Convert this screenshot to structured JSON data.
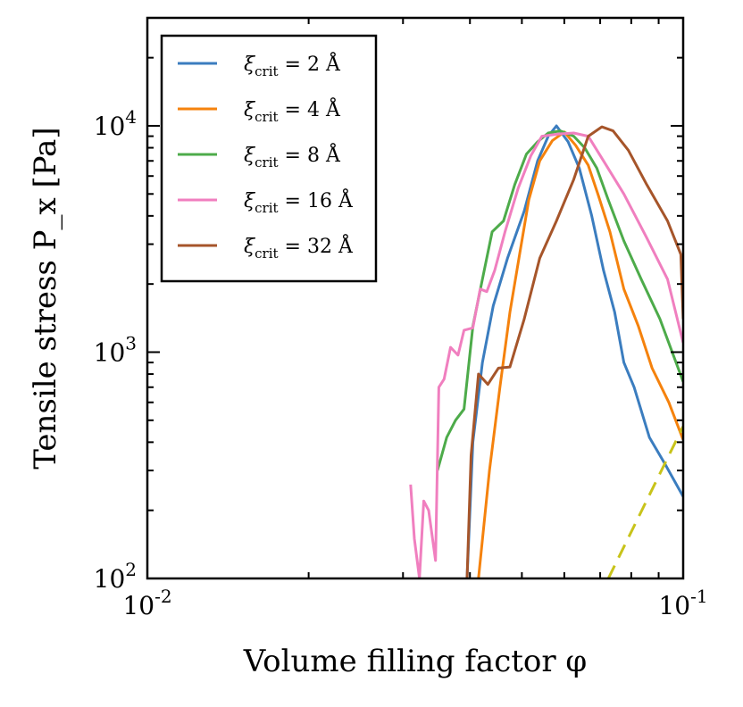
{
  "chart_data": {
    "type": "line",
    "title": "",
    "xlabel": "Volume filling factor φ",
    "ylabel": "Tensile stress P_x [Pa]",
    "xscale": "log",
    "yscale": "log",
    "xlim": [
      0.01,
      0.1
    ],
    "ylim": [
      100,
      30000
    ],
    "x_major_ticks": [
      {
        "value": 0.01,
        "base": "10",
        "exp": "-2"
      },
      {
        "value": 0.1,
        "base": "10",
        "exp": "-1"
      }
    ],
    "y_major_ticks": [
      {
        "value": 100,
        "base": "10",
        "exp": "2"
      },
      {
        "value": 1000,
        "base": "10",
        "exp": "3"
      },
      {
        "value": 10000,
        "base": "10",
        "exp": "4"
      }
    ],
    "grid": false,
    "legend_position": "top-left",
    "series": [
      {
        "name": "ξcrit = 2 Å",
        "legend_sym": "ξ",
        "legend_sub": "crit",
        "legend_eq": " = 2 Å",
        "color": "#3b7dbf",
        "points": [
          [
            0.0395,
            100
          ],
          [
            0.0405,
            400
          ],
          [
            0.0422,
            900
          ],
          [
            0.0442,
            1600
          ],
          [
            0.047,
            2600
          ],
          [
            0.0505,
            4200
          ],
          [
            0.0535,
            7000
          ],
          [
            0.056,
            9000
          ],
          [
            0.058,
            10000
          ],
          [
            0.061,
            8500
          ],
          [
            0.064,
            6500
          ],
          [
            0.0675,
            4000
          ],
          [
            0.071,
            2300
          ],
          [
            0.0745,
            1500
          ],
          [
            0.0775,
            900
          ],
          [
            0.081,
            700
          ],
          [
            0.0865,
            420
          ],
          [
            0.0925,
            320
          ],
          [
            0.1,
            230
          ]
        ]
      },
      {
        "name": "ξcrit = 4 Å",
        "legend_sym": "ξ",
        "legend_sub": "crit",
        "legend_eq": " = 4 Å",
        "color": "#f5820d",
        "points": [
          [
            0.0415,
            100
          ],
          [
            0.0435,
            300
          ],
          [
            0.0455,
            700
          ],
          [
            0.0475,
            1500
          ],
          [
            0.0495,
            2700
          ],
          [
            0.0515,
            4700
          ],
          [
            0.054,
            7000
          ],
          [
            0.057,
            8600
          ],
          [
            0.06,
            9400
          ],
          [
            0.063,
            8200
          ],
          [
            0.0665,
            6700
          ],
          [
            0.0695,
            4900
          ],
          [
            0.073,
            3400
          ],
          [
            0.0775,
            1900
          ],
          [
            0.0825,
            1300
          ],
          [
            0.0875,
            850
          ],
          [
            0.094,
            600
          ],
          [
            0.1,
            410
          ]
        ]
      },
      {
        "name": "ξcrit = 8 Å",
        "legend_sym": "ξ",
        "legend_sub": "crit",
        "legend_eq": " = 8 Å",
        "color": "#4dab4a",
        "points": [
          [
            0.0348,
            300
          ],
          [
            0.0362,
            420
          ],
          [
            0.0376,
            500
          ],
          [
            0.039,
            560
          ],
          [
            0.0405,
            1300
          ],
          [
            0.0422,
            2100
          ],
          [
            0.044,
            3400
          ],
          [
            0.0462,
            3800
          ],
          [
            0.0485,
            5500
          ],
          [
            0.051,
            7500
          ],
          [
            0.0535,
            8500
          ],
          [
            0.056,
            9300
          ],
          [
            0.059,
            9500
          ],
          [
            0.0625,
            9000
          ],
          [
            0.0655,
            8000
          ],
          [
            0.069,
            6500
          ],
          [
            0.0725,
            4700
          ],
          [
            0.0775,
            3100
          ],
          [
            0.0835,
            2100
          ],
          [
            0.0905,
            1400
          ],
          [
            0.1,
            740
          ]
        ]
      },
      {
        "name": "ξcrit = 16 Å",
        "legend_sym": "ξ",
        "legend_sub": "crit",
        "legend_eq": " = 16 Å",
        "color": "#f07fbf",
        "points": [
          [
            0.031,
            260
          ],
          [
            0.0315,
            150
          ],
          [
            0.0322,
            100
          ],
          [
            0.0328,
            220
          ],
          [
            0.0335,
            200
          ],
          [
            0.0345,
            120
          ],
          [
            0.035,
            700
          ],
          [
            0.0358,
            760
          ],
          [
            0.0368,
            1050
          ],
          [
            0.038,
            970
          ],
          [
            0.039,
            1250
          ],
          [
            0.0405,
            1280
          ],
          [
            0.0418,
            1900
          ],
          [
            0.043,
            1850
          ],
          [
            0.0445,
            2300
          ],
          [
            0.0465,
            3400
          ],
          [
            0.0492,
            5300
          ],
          [
            0.052,
            7400
          ],
          [
            0.0545,
            9000
          ],
          [
            0.0585,
            9200
          ],
          [
            0.0625,
            9300
          ],
          [
            0.0665,
            9000
          ],
          [
            0.071,
            7000
          ],
          [
            0.0775,
            5000
          ],
          [
            0.0855,
            3200
          ],
          [
            0.0935,
            2100
          ],
          [
            0.1,
            1100
          ]
        ]
      },
      {
        "name": "ξcrit = 32 Å",
        "legend_sym": "ξ",
        "legend_sub": "crit",
        "legend_eq": " = 32 Å",
        "color": "#a6552a",
        "points": [
          [
            0.0395,
            100
          ],
          [
            0.0402,
            350
          ],
          [
            0.0415,
            800
          ],
          [
            0.0432,
            720
          ],
          [
            0.0452,
            850
          ],
          [
            0.0475,
            860
          ],
          [
            0.0505,
            1400
          ],
          [
            0.054,
            2600
          ],
          [
            0.058,
            3800
          ],
          [
            0.0625,
            5800
          ],
          [
            0.0665,
            9000
          ],
          [
            0.0705,
            9900
          ],
          [
            0.074,
            9500
          ],
          [
            0.079,
            7800
          ],
          [
            0.0855,
            5500
          ],
          [
            0.0935,
            3800
          ],
          [
            0.099,
            2700
          ],
          [
            0.1,
            1400
          ]
        ]
      },
      {
        "name": "",
        "color": "#c8c31a",
        "dashed": true,
        "points": [
          [
            0.0725,
            100
          ],
          [
            0.1,
            470
          ]
        ]
      }
    ]
  }
}
